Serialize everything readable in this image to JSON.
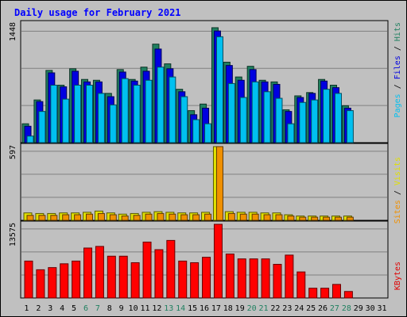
{
  "chart_data": {
    "title": "Daily usage for February 2021",
    "days": [
      "1",
      "2",
      "3",
      "4",
      "5",
      "6",
      "7",
      "8",
      "9",
      "10",
      "11",
      "12",
      "13",
      "14",
      "15",
      "16",
      "17",
      "18",
      "19",
      "20",
      "21",
      "22",
      "23",
      "24",
      "25",
      "26",
      "27",
      "28",
      "29",
      "30",
      "31"
    ],
    "weekend_days": [
      6,
      7,
      13,
      14,
      20,
      21,
      27,
      28
    ],
    "legend_top": [
      {
        "label": "Pages",
        "color": "#00c0f0"
      },
      {
        "label": "Files",
        "color": "#0000e0"
      },
      {
        "label": "Hits",
        "color": "#208060"
      }
    ],
    "legend_mid": [
      {
        "label": "Sites",
        "color": "#f09000"
      },
      {
        "label": "Visits",
        "color": "#e0e000"
      }
    ],
    "legend_bot": [
      {
        "label": "KBytes",
        "color": "#e00000"
      }
    ],
    "panels": [
      {
        "name": "hits-files-pages",
        "type": "bar",
        "ymax_label": "1448",
        "ymax": 1448,
        "series": [
          {
            "name": "Hits",
            "color": "#208060",
            "values": [
              230,
              520,
              880,
              700,
              900,
              770,
              760,
              600,
              890,
              770,
              920,
              1200,
              960,
              650,
              390,
              470,
              1400,
              980,
              800,
              930,
              760,
              740,
              400,
              570,
              610,
              770,
              700,
              450,
              0,
              0,
              0
            ]
          },
          {
            "name": "Files",
            "color": "#0000e0",
            "values": [
              200,
              500,
              850,
              680,
              870,
              740,
              740,
              560,
              860,
              750,
              870,
              1140,
              900,
              620,
              340,
              420,
              1360,
              940,
              760,
              890,
              740,
              710,
              380,
              550,
              600,
              750,
              670,
              420,
              0,
              0,
              0
            ]
          },
          {
            "name": "Pages",
            "color": "#00c0f0",
            "values": [
              80,
              380,
              700,
              530,
              700,
              700,
              600,
              460,
              780,
              700,
              760,
              920,
              800,
              560,
              280,
              230,
              1290,
              720,
              550,
              740,
              620,
              540,
              230,
              490,
              520,
              650,
              600,
              390,
              0,
              0,
              0
            ]
          }
        ]
      },
      {
        "name": "visits-sites",
        "type": "bar",
        "ymax_label": "597",
        "ymax": 597,
        "series": [
          {
            "name": "Visits",
            "color": "#e0e000",
            "values": [
              60,
              55,
              55,
              60,
              60,
              65,
              75,
              60,
              50,
              55,
              65,
              70,
              65,
              60,
              60,
              65,
              597,
              70,
              65,
              65,
              60,
              60,
              45,
              35,
              35,
              35,
              35,
              35,
              0,
              0,
              0
            ]
          },
          {
            "name": "Sites",
            "color": "#f09000",
            "values": [
              40,
              40,
              40,
              45,
              45,
              50,
              55,
              45,
              35,
              40,
              50,
              55,
              50,
              45,
              45,
              50,
              597,
              55,
              50,
              50,
              45,
              45,
              35,
              25,
              25,
              25,
              25,
              25,
              0,
              0,
              0
            ]
          }
        ]
      },
      {
        "name": "kbytes",
        "type": "bar",
        "ymax_label": "13575",
        "ymax": 13575,
        "series": [
          {
            "name": "KBytes",
            "color": "#ff0000",
            "values": [
              6800,
              5200,
              5600,
              6300,
              6800,
              9200,
              9500,
              7700,
              7700,
              6500,
              10300,
              8900,
              10600,
              6800,
              6500,
              7500,
              13575,
              8100,
              7200,
              7200,
              7200,
              6200,
              7900,
              4800,
              1800,
              1800,
              2500,
              1200,
              0,
              0,
              0
            ]
          }
        ]
      }
    ]
  }
}
